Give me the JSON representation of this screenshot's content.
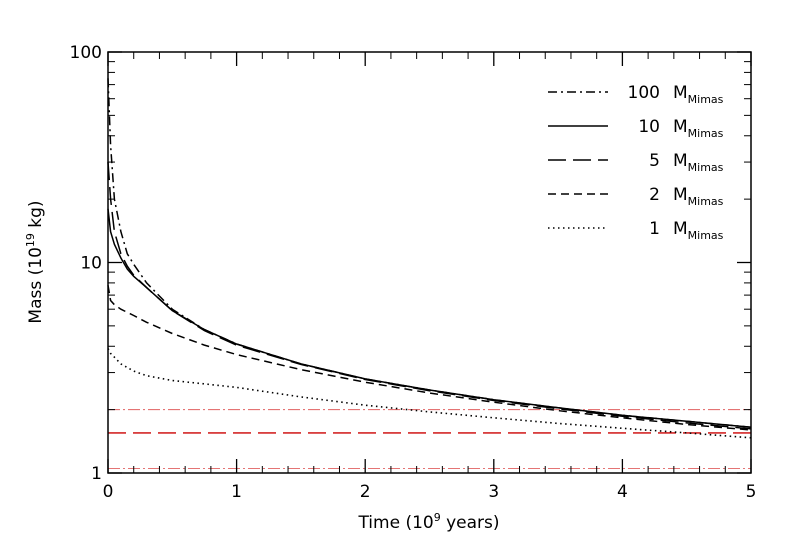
{
  "chart_data": {
    "type": "line",
    "title": "",
    "xlabel": {
      "main": "Time (10",
      "sup": "9",
      "end": " years)"
    },
    "ylabel": {
      "main": "Mass (10",
      "sup": "19",
      "end": " kg)"
    },
    "xscale": "linear",
    "yscale": "log",
    "xlim": [
      0,
      5
    ],
    "ylim": [
      1,
      100
    ],
    "x_ticks": [
      0,
      1,
      2,
      3,
      4,
      5
    ],
    "x_tick_labels": [
      "0",
      "1",
      "2",
      "3",
      "4",
      "5"
    ],
    "y_ticks": [
      1,
      10,
      100
    ],
    "y_tick_labels": [
      "1",
      "10",
      "100"
    ],
    "legend_position": "top-right",
    "series": [
      {
        "name": "100 M_Mimas",
        "label": "100",
        "unit": "M",
        "sub": "Mimas",
        "style": "dashdot",
        "x": [
          0,
          0.02,
          0.05,
          0.1,
          0.15,
          0.2,
          0.3,
          0.5,
          0.75,
          1.0,
          1.5,
          2.0,
          2.5,
          3.0,
          3.5,
          4.0,
          4.5,
          5.0
        ],
        "y": [
          75,
          36,
          20,
          14,
          11,
          9.8,
          8.0,
          6.0,
          4.8,
          4.1,
          3.3,
          2.8,
          2.48,
          2.23,
          2.04,
          1.88,
          1.76,
          1.65
        ]
      },
      {
        "name": "10 M_Mimas",
        "label": "10",
        "unit": "M",
        "sub": "Mimas",
        "style": "solid",
        "x": [
          0,
          0.02,
          0.05,
          0.1,
          0.15,
          0.2,
          0.3,
          0.5,
          0.75,
          1.0,
          1.5,
          2.0,
          2.5,
          3.0,
          3.5,
          4.0,
          4.5,
          5.0
        ],
        "y": [
          18,
          14,
          12.2,
          10.5,
          9.3,
          8.6,
          7.6,
          5.9,
          4.8,
          4.1,
          3.3,
          2.8,
          2.48,
          2.23,
          2.04,
          1.88,
          1.76,
          1.65
        ]
      },
      {
        "name": "5 M_Mimas",
        "label": "5",
        "unit": "M",
        "sub": "Mimas",
        "style": "longdash",
        "x": [
          0,
          0.02,
          0.05,
          0.1,
          0.15,
          0.2,
          0.3,
          0.5,
          0.75,
          1.0,
          1.5,
          2.0,
          2.5,
          3.0,
          3.5,
          4.0,
          4.5,
          5.0
        ],
        "y": [
          30,
          20,
          14,
          11,
          9.6,
          8.7,
          7.6,
          5.9,
          4.75,
          4.05,
          3.28,
          2.78,
          2.46,
          2.21,
          2.02,
          1.86,
          1.73,
          1.62
        ]
      },
      {
        "name": "2 M_Mimas",
        "label": "2",
        "unit": "M",
        "sub": "Mimas",
        "style": "dashed",
        "x": [
          0,
          0.02,
          0.05,
          0.1,
          0.2,
          0.3,
          0.5,
          0.75,
          1.0,
          1.5,
          2.0,
          2.5,
          3.0,
          3.5,
          4.0,
          4.5,
          5.0
        ],
        "y": [
          7.8,
          6.6,
          6.3,
          6.0,
          5.6,
          5.2,
          4.6,
          4.05,
          3.65,
          3.1,
          2.7,
          2.4,
          2.17,
          1.98,
          1.83,
          1.7,
          1.6
        ]
      },
      {
        "name": "1 M_Mimas",
        "label": "1",
        "unit": "M",
        "sub": "Mimas",
        "style": "dotted",
        "x": [
          0,
          0.02,
          0.05,
          0.1,
          0.2,
          0.3,
          0.5,
          0.75,
          1.0,
          1.5,
          2.0,
          2.5,
          3.0,
          3.5,
          4.0,
          4.5,
          5.0
        ],
        "y": [
          3.9,
          3.7,
          3.55,
          3.3,
          3.05,
          2.9,
          2.75,
          2.65,
          2.55,
          2.3,
          2.1,
          1.95,
          1.83,
          1.72,
          1.63,
          1.55,
          1.47
        ]
      }
    ],
    "reference_lines": [
      {
        "y": 2.0,
        "color": "#e06060",
        "style": "thin-dashdot"
      },
      {
        "y": 1.55,
        "color": "#cc0000",
        "style": "longdash"
      },
      {
        "y": 1.05,
        "color": "#e06060",
        "style": "thin-dashdot"
      }
    ]
  }
}
